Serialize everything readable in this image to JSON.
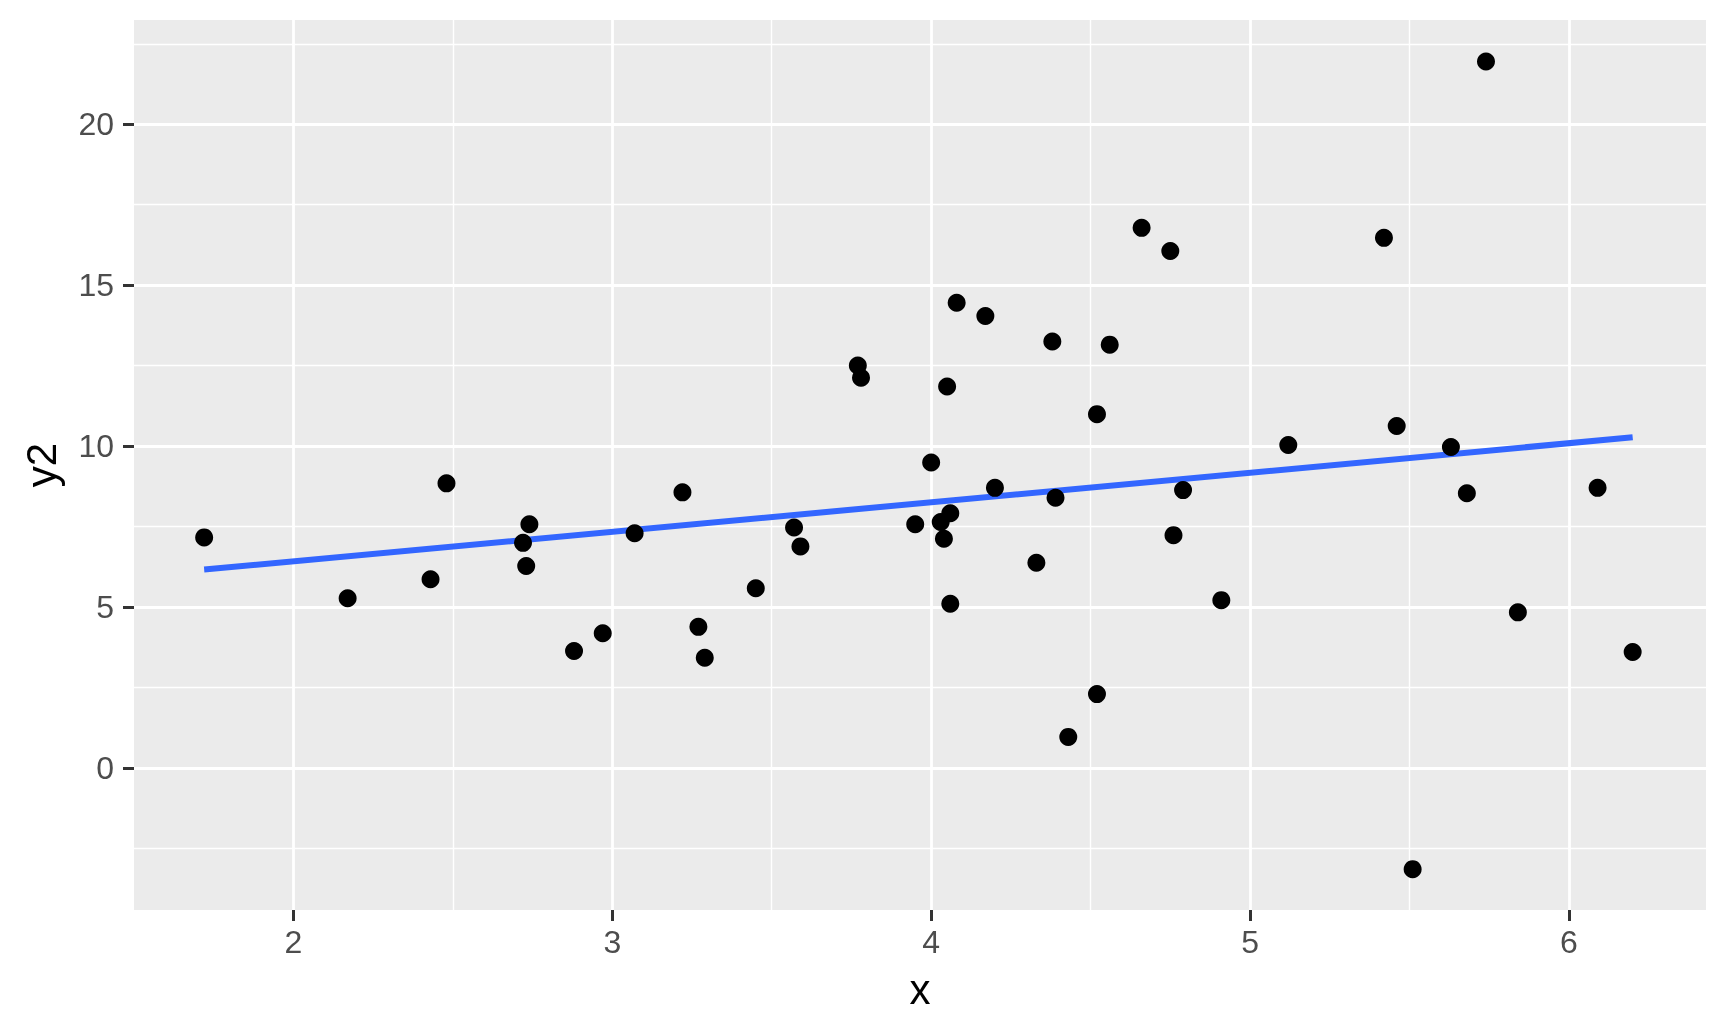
{
  "chart_data": {
    "type": "scatter",
    "xlabel": "x",
    "ylabel": "y2",
    "series": [
      {
        "color": "#000000",
        "marker": "circle",
        "x": [
          1.72,
          2.17,
          2.43,
          2.48,
          2.72,
          2.74,
          2.73,
          2.88,
          2.97,
          3.07,
          3.22,
          3.27,
          3.29,
          3.45,
          3.57,
          3.59,
          3.77,
          3.78,
          3.95,
          4.0,
          4.03,
          4.04,
          4.06,
          4.05,
          4.06,
          4.08,
          4.17,
          4.2,
          4.33,
          4.38,
          4.39,
          4.43,
          4.52,
          4.52,
          4.56,
          4.66,
          4.75,
          4.76,
          4.79,
          4.91,
          5.12,
          5.42,
          5.46,
          5.51,
          5.63,
          5.68,
          5.74,
          5.84,
          6.09,
          6.2
        ],
        "values": [
          7.16,
          5.27,
          5.86,
          8.84,
          6.99,
          7.57,
          6.27,
          3.63,
          4.18,
          7.29,
          8.56,
          4.38,
          3.42,
          5.58,
          7.47,
          6.88,
          12.5,
          12.12,
          7.57,
          9.49,
          7.64,
          7.12,
          7.91,
          11.85,
          5.1,
          14.45,
          14.04,
          8.7,
          6.37,
          13.25,
          8.39,
          0.96,
          2.29,
          10.99,
          13.15,
          16.78,
          16.06,
          7.23,
          8.63,
          5.21,
          10.03,
          16.47,
          10.62,
          -3.15,
          9.97,
          8.53,
          21.95,
          4.83,
          8.7,
          3.6
        ]
      },
      {
        "type": "line",
        "color": "#3366ff",
        "marker": "none",
        "x": [
          1.72,
          6.2
        ],
        "values": [
          6.16,
          10.27
        ]
      }
    ],
    "xlim": [
      1.5,
      6.43
    ],
    "ylim": [
      -4.42,
      23.24
    ],
    "xticks": [
      2,
      3,
      4,
      5,
      6
    ],
    "yticks": [
      0,
      5,
      10,
      15,
      20
    ],
    "grid": true
  }
}
